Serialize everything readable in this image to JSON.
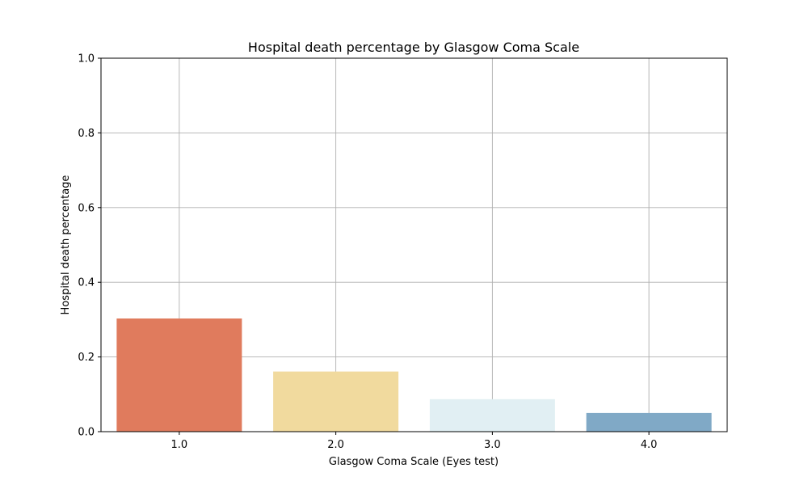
{
  "chart_data": {
    "type": "bar",
    "title": "Hospital death percentage by Glasgow Coma Scale",
    "xlabel": "Glasgow Coma Scale (Eyes test)",
    "ylabel": "Hospital death percentage",
    "categories": [
      "1.0",
      "2.0",
      "3.0",
      "4.0"
    ],
    "values": [
      0.303,
      0.161,
      0.087,
      0.05
    ],
    "colors": [
      "#e07b5d",
      "#f1da9e",
      "#e1eff3",
      "#80a9c6"
    ],
    "ylim": [
      0,
      1.0
    ],
    "yticks": [
      "0.0",
      "0.2",
      "0.4",
      "0.6",
      "0.8",
      "1.0"
    ],
    "grid": true,
    "legend": "none"
  }
}
